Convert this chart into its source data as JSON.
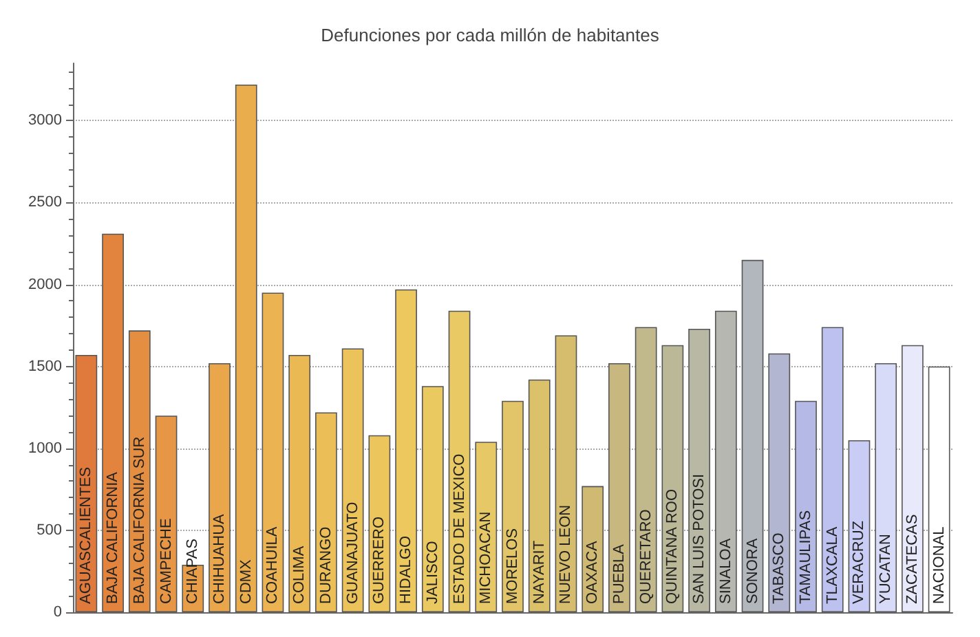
{
  "chart_data": {
    "type": "bar",
    "title": "Defunciones por cada millón de habitantes",
    "categories": [
      "AGUASCALIENTES",
      "BAJA CALIFORNIA",
      "BAJA CALIFORNIA SUR",
      "CAMPECHE",
      "CHIAPAS",
      "CHIHUAHUA",
      "CDMX",
      "COAHUILA",
      "COLIMA",
      "DURANGO",
      "GUANAJUATO",
      "GUERRERO",
      "HIDALGO",
      "JALISCO",
      "ESTADO DE MEXICO",
      "MICHOACAN",
      "MORELOS",
      "NAYARIT",
      "NUEVO LEON",
      "OAXACA",
      "PUEBLA",
      "QUERETARO",
      "QUINTANA ROO",
      "SAN LUIS POTOSI",
      "SINALOA",
      "SONORA",
      "TABASCO",
      "TAMAULIPAS",
      "TLAXCALA",
      "VERACRUZ",
      "YUCATAN",
      "ZACATECAS",
      "NACIONAL"
    ],
    "values": [
      1570,
      2310,
      1720,
      1200,
      290,
      1520,
      3220,
      1950,
      1570,
      1220,
      1610,
      1080,
      1970,
      1380,
      1840,
      1040,
      1290,
      1420,
      1690,
      770,
      1520,
      1740,
      1630,
      1730,
      1840,
      2150,
      1580,
      1290,
      1740,
      1050,
      1520,
      1630,
      1500
    ],
    "colors": [
      "#e07a3c",
      "#e2843e",
      "#e48e42",
      "#e69645",
      "#e89e48",
      "#e9a64b",
      "#eaad4e",
      "#ebb351",
      "#ebb954",
      "#ecbe57",
      "#ecc25a",
      "#ecc55c",
      "#ecc85f",
      "#ebc961",
      "#e9c963",
      "#e6c866",
      "#e2c568",
      "#dcc16b",
      "#d6bd6e",
      "#cfb973",
      "#c8b87f",
      "#c1b88c",
      "#bbb898",
      "#b8b8a4",
      "#b5b7b0",
      "#b2b6bd",
      "#b2b6d0",
      "#b4b9e6",
      "#bcc1f0",
      "#c9cdf5",
      "#d8dbf8",
      "#e8e9fb",
      "#ffffff"
    ],
    "ylim": [
      0,
      3350
    ],
    "yticks": [
      0,
      500,
      1000,
      1500,
      2000,
      2500,
      3000
    ],
    "grid": "y"
  }
}
